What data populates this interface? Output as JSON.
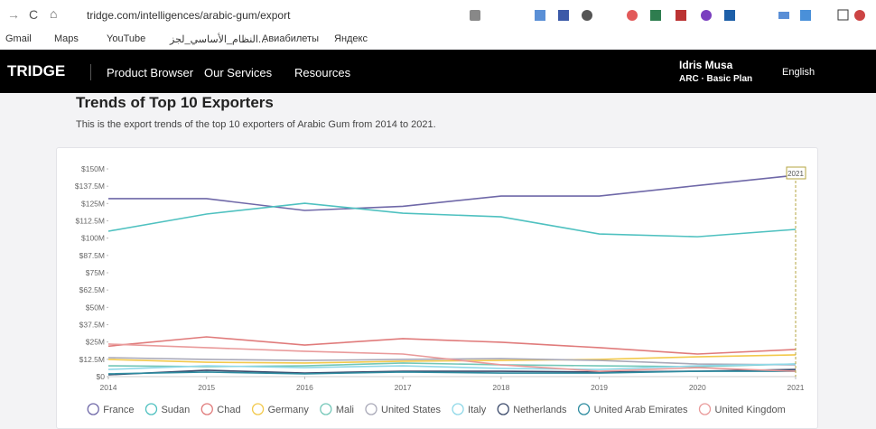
{
  "browser": {
    "url": "tridge.com/intelligences/arabic-gum/export",
    "bookmarks": [
      "Gmail",
      "Maps",
      "YouTube",
      "النظام_الأساسي_لجز...",
      "Авиабилеты",
      "Яндекс"
    ]
  },
  "nav": {
    "logo": "TRIDGE",
    "items": [
      "Product Browser",
      "Our Services",
      "Resources"
    ],
    "user_name": "Idris Musa",
    "user_plan": "ARC · Basic Plan",
    "language": "English"
  },
  "section": {
    "title": "Trends of Top 10 Exporters",
    "description": "This is the export trends of the top 10 exporters of Arabic Gum from 2014 to 2021."
  },
  "chart_data": {
    "type": "line",
    "x": [
      2014,
      2015,
      2016,
      2017,
      2018,
      2019,
      2020,
      2021
    ],
    "xlim": [
      2014,
      2021
    ],
    "xticks": [
      2014,
      2015,
      2016,
      2017,
      2018,
      2019,
      2020,
      2021
    ],
    "ylim": [
      0,
      150000000
    ],
    "yticks": [
      {
        "value": 0,
        "label": "$0"
      },
      {
        "value": 12500000,
        "label": "$12.5M"
      },
      {
        "value": 25000000,
        "label": "$25M"
      },
      {
        "value": 37500000,
        "label": "$37.5M"
      },
      {
        "value": 50000000,
        "label": "$50M"
      },
      {
        "value": 62500000,
        "label": "$62.5M"
      },
      {
        "value": 75000000,
        "label": "$75M"
      },
      {
        "value": 87500000,
        "label": "$87.5M"
      },
      {
        "value": 100000000,
        "label": "$100M"
      },
      {
        "value": 112500000,
        "label": "$112.5M"
      },
      {
        "value": 125000000,
        "label": "$125M"
      },
      {
        "value": 137500000,
        "label": "$137.5M"
      },
      {
        "value": 150000000,
        "label": "$150M"
      }
    ],
    "grid": false,
    "series": [
      {
        "name": "France",
        "color": "#6f68a8",
        "values": [
          128500000,
          128500000,
          120000000,
          123000000,
          130400000,
          130400000,
          138000000,
          145400000
        ]
      },
      {
        "name": "Sudan",
        "color": "#4fc1c0",
        "values": [
          105000000,
          117400000,
          125200000,
          118000000,
          115400000,
          103000000,
          101000000,
          106300000
        ]
      },
      {
        "name": "Chad",
        "color": "#e07b7b",
        "values": [
          22000000,
          28700000,
          22800000,
          27400000,
          24800000,
          20900000,
          16300000,
          19600000
        ]
      },
      {
        "name": "Germany",
        "color": "#f2c94c",
        "values": [
          12400000,
          10400000,
          9800000,
          11100000,
          11700000,
          12400000,
          14300000,
          15700000
        ]
      },
      {
        "name": "Mali",
        "color": "#74c7b8",
        "values": [
          7800000,
          7200000,
          7800000,
          9800000,
          8500000,
          7800000,
          7200000,
          9100000
        ]
      },
      {
        "name": "United States",
        "color": "#a9a9b8",
        "values": [
          13700000,
          12400000,
          11700000,
          12400000,
          13000000,
          11700000,
          9100000,
          8500000
        ]
      },
      {
        "name": "Italy",
        "color": "#8fd8e8",
        "values": [
          5200000,
          7800000,
          6500000,
          7800000,
          5900000,
          5200000,
          7800000,
          9100000
        ]
      },
      {
        "name": "Netherlands",
        "color": "#3b4a6b",
        "values": [
          1300000,
          4600000,
          2600000,
          3900000,
          3900000,
          3300000,
          3900000,
          5200000
        ]
      },
      {
        "name": "United Arab Emirates",
        "color": "#2e8ca0",
        "values": [
          2000000,
          3300000,
          2000000,
          3300000,
          2600000,
          2600000,
          3900000,
          3900000
        ]
      },
      {
        "name": "United Kingdom",
        "color": "#e99a9a",
        "values": [
          23500000,
          20900000,
          18300000,
          16300000,
          8500000,
          3900000,
          6500000,
          3900000
        ]
      }
    ]
  }
}
